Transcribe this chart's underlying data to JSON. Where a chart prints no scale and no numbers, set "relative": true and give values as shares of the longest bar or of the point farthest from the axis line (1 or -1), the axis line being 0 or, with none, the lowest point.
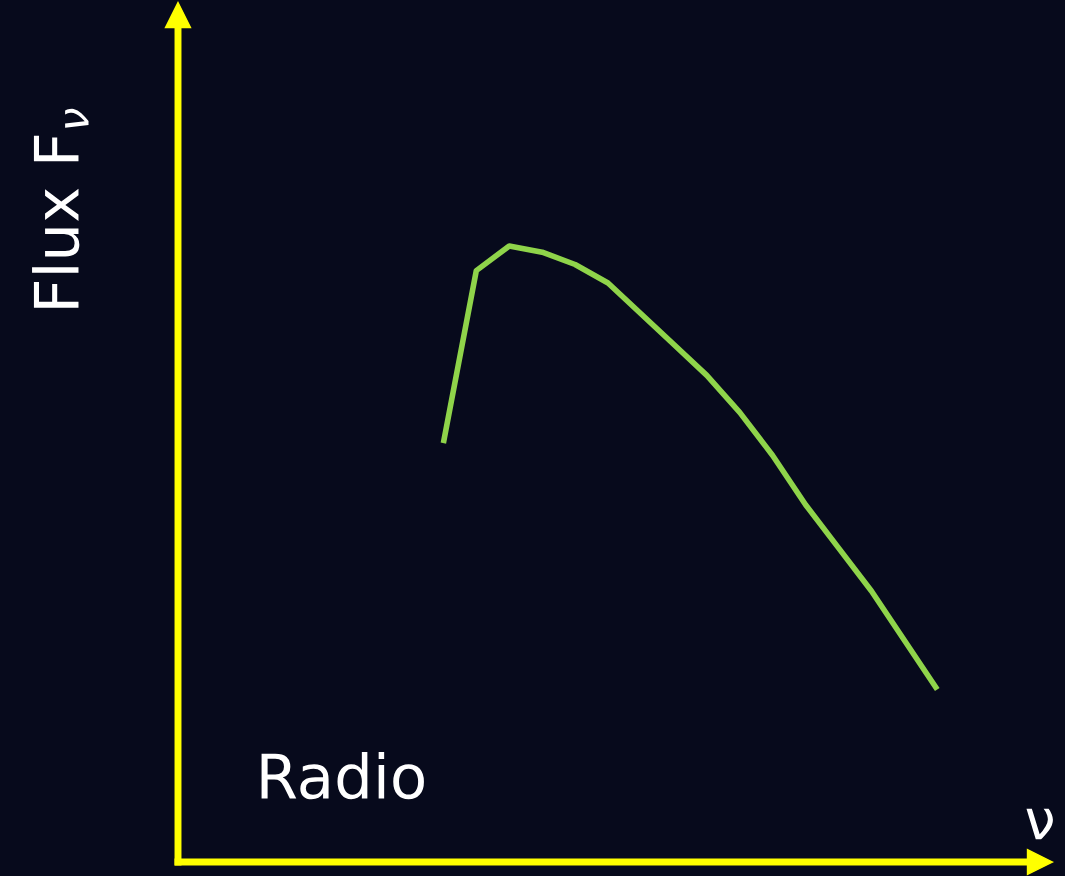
{
  "chart_data": {
    "type": "line",
    "relative": true,
    "ylabel": "Flux F$_{ν}$",
    "xlabel": "ν",
    "annotations": [
      "Radio"
    ],
    "categories": [
      null,
      null,
      null,
      null,
      null,
      null,
      null,
      null,
      null,
      null,
      null,
      null,
      null,
      null,
      null,
      null,
      null,
      null,
      null,
      null,
      null,
      null,
      null,
      null,
      null,
      null,
      null
    ],
    "series": [
      {
        "color": "#8fd44a",
        "values": [
          null,
          null,
          null,
          null,
          null,
          null,
          null,
          null,
          0.68,
          0.96,
          1,
          0.99,
          0.97,
          0.94,
          0.89,
          0.84,
          0.79,
          0.73,
          0.66,
          0.58,
          0.51,
          0.44,
          0.36,
          0.28,
          null,
          null,
          null
        ]
      }
    ],
    "grid": false,
    "legend": false,
    "marker": "none",
    "line_style": "solid"
  }
}
